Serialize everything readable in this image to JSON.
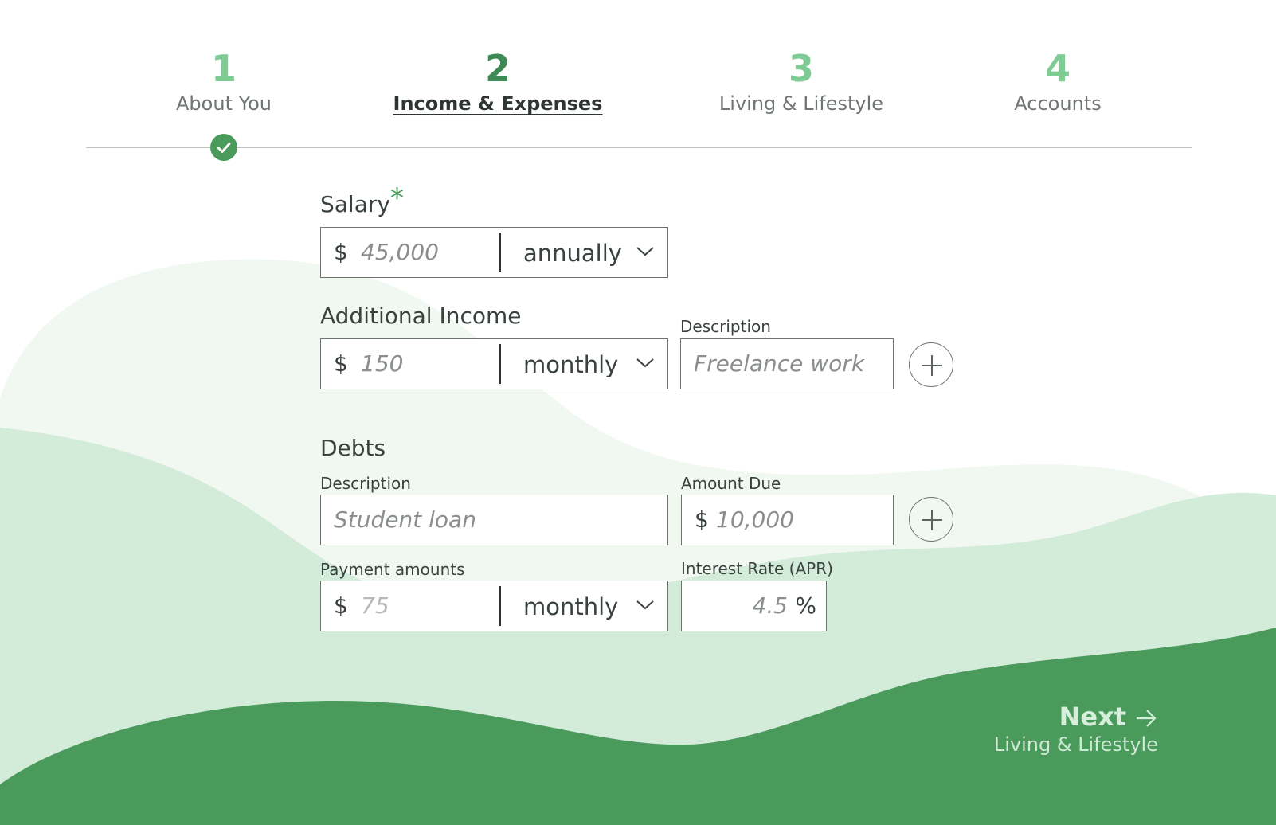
{
  "stepper": {
    "steps": [
      {
        "number": "1",
        "label": "About You",
        "state": "complete"
      },
      {
        "number": "2",
        "label": "Income & Expenses",
        "state": "active"
      },
      {
        "number": "3",
        "label": "Living & Lifestyle",
        "state": "upcoming"
      },
      {
        "number": "4",
        "label": "Accounts",
        "state": "upcoming"
      }
    ],
    "complete_icon": "check-icon"
  },
  "salary": {
    "label": "Salary",
    "required_mark": "*",
    "currency": "$",
    "amount_placeholder": "45,000",
    "frequency": "annually"
  },
  "additional_income": {
    "label": "Additional Income",
    "currency": "$",
    "amount_placeholder": "150",
    "frequency": "monthly",
    "description_label": "Description",
    "description_placeholder": "Freelance work",
    "add_icon": "plus-circle-icon"
  },
  "debts": {
    "label": "Debts",
    "description_label": "Description",
    "description_placeholder": "Student loan",
    "amount_due_label": "Amount Due",
    "amount_due_currency": "$",
    "amount_due_placeholder": "10,000",
    "payment_label": "Payment amounts",
    "payment_currency": "$",
    "payment_placeholder": "75",
    "payment_frequency": "monthly",
    "interest_label": "Interest Rate (APR)",
    "interest_placeholder": "4.5",
    "interest_unit": "%",
    "add_icon": "plus-circle-icon"
  },
  "next": {
    "label": "Next",
    "sublabel": "Living & Lifestyle",
    "icon": "arrow-right-icon"
  },
  "colors": {
    "accent": "#4a9a5c",
    "accent_light": "#7fcb94",
    "wave_light": "#f1f8f2",
    "wave_mid": "#d3ebd9",
    "wave_dark": "#4a9a5c"
  }
}
